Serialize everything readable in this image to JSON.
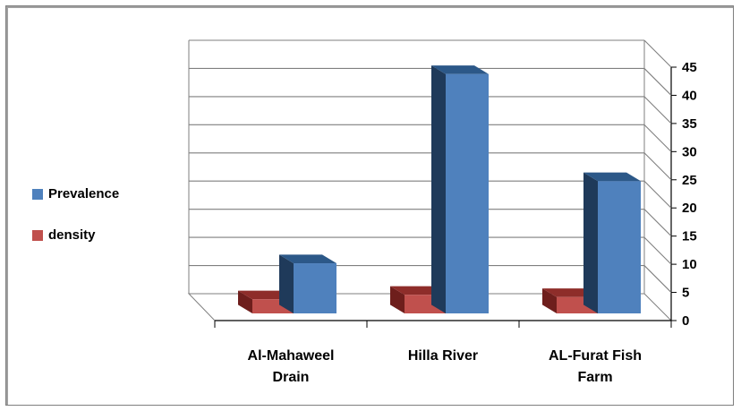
{
  "chart_data": {
    "type": "bar",
    "categories": [
      "Al-Mahaweel Drain",
      "Hilla River",
      "AL-Furat Fish Farm"
    ],
    "category_lines": [
      [
        "Al-Mahaweel",
        "Drain"
      ],
      [
        "Hilla River"
      ],
      [
        "AL-Furat Fish",
        "Farm"
      ]
    ],
    "series": [
      {
        "name": "Prevalence",
        "values": [
          8.9,
          42.5,
          23.5
        ],
        "color": "#4f81bd",
        "side_color": "#1f3a5a",
        "top_color": "#2c5888"
      },
      {
        "name": "density",
        "values": [
          2.5,
          3.3,
          2.9
        ],
        "color": "#c0504d",
        "side_color": "#6e1e1c",
        "top_color": "#8e2d2a"
      }
    ],
    "yticks": [
      0,
      5,
      10,
      15,
      20,
      25,
      30,
      35,
      40,
      45
    ],
    "ylim": [
      0,
      45
    ],
    "legend_position": "left",
    "style": "3d-clustered-column",
    "grid": true
  }
}
